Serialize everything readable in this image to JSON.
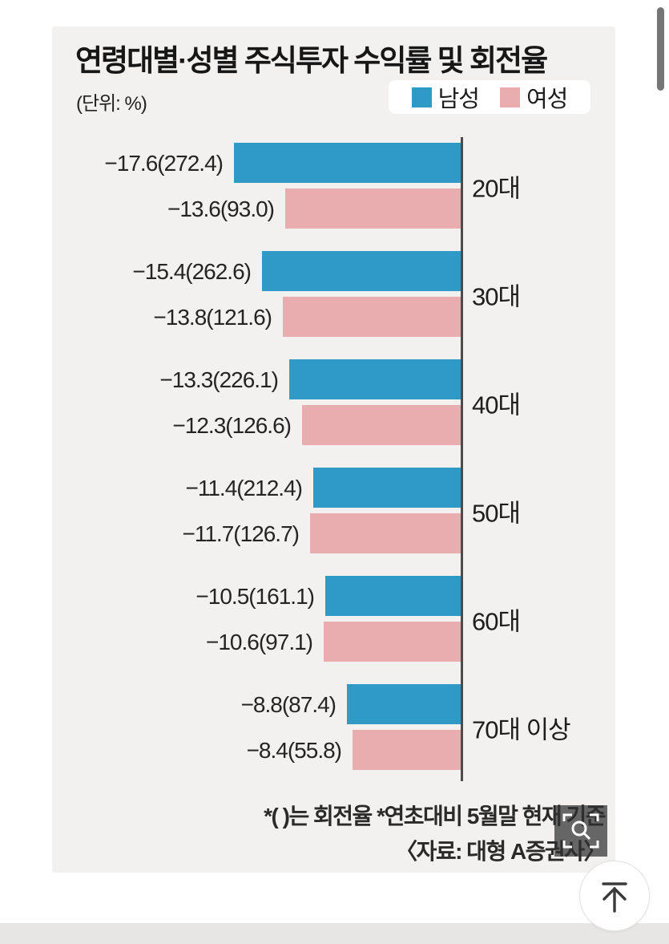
{
  "header": {
    "title": "연령대별·성별 주식투자 수익률 및 회전율",
    "unit_label": "(단위: %)"
  },
  "legend": {
    "items": [
      {
        "label": "남성",
        "color": "#2f9ac6"
      },
      {
        "label": "여성",
        "color": "#eaadaf"
      }
    ]
  },
  "chart_data": {
    "type": "bar",
    "orientation": "horizontal-left",
    "title": "연령대별·성별 주식투자 수익률 및 회전율",
    "unit": "%",
    "value_format": "수익률(회전율)",
    "xlim": [
      -18,
      0
    ],
    "categories": [
      "20대",
      "30대",
      "40대",
      "50대",
      "60대",
      "70대 이상"
    ],
    "series": [
      {
        "name": "남성",
        "color": "#2f9ac6",
        "returns": [
          -17.6,
          -15.4,
          -13.3,
          -11.4,
          -10.5,
          -8.8
        ],
        "turnover": [
          272.4,
          262.6,
          226.1,
          212.4,
          161.1,
          87.4
        ]
      },
      {
        "name": "여성",
        "color": "#eaadaf",
        "returns": [
          -13.6,
          -13.8,
          -12.3,
          -11.7,
          -10.6,
          -8.4
        ],
        "turnover": [
          93.0,
          121.6,
          126.6,
          126.7,
          97.1,
          55.8
        ]
      }
    ],
    "rows": [
      {
        "category": "20대",
        "male": {
          "label": "−17.6(272.4)",
          "value": -17.6,
          "turnover": 272.4
        },
        "female": {
          "label": "−13.6(93.0)",
          "value": -13.6,
          "turnover": 93.0
        }
      },
      {
        "category": "30대",
        "male": {
          "label": "−15.4(262.6)",
          "value": -15.4,
          "turnover": 262.6
        },
        "female": {
          "label": "−13.8(121.6)",
          "value": -13.8,
          "turnover": 121.6
        }
      },
      {
        "category": "40대",
        "male": {
          "label": "−13.3(226.1)",
          "value": -13.3,
          "turnover": 226.1
        },
        "female": {
          "label": "−12.3(126.6)",
          "value": -12.3,
          "turnover": 126.6
        }
      },
      {
        "category": "50대",
        "male": {
          "label": "−11.4(212.4)",
          "value": -11.4,
          "turnover": 212.4
        },
        "female": {
          "label": "−11.7(126.7)",
          "value": -11.7,
          "turnover": 126.7
        }
      },
      {
        "category": "60대",
        "male": {
          "label": "−10.5(161.1)",
          "value": -10.5,
          "turnover": 161.1
        },
        "female": {
          "label": "−10.6(97.1)",
          "value": -10.6,
          "turnover": 97.1
        }
      },
      {
        "category": "70대 이상",
        "male": {
          "label": "−8.8(87.4)",
          "value": -8.8,
          "turnover": 87.4
        },
        "female": {
          "label": "−8.4(55.8)",
          "value": -8.4,
          "turnover": 55.8
        }
      }
    ]
  },
  "footnotes": {
    "note": "*( )는 회전율 *연초대비 5월말 현재 기준",
    "source": "〈자료: 대형 A증권사〉"
  },
  "ui": {
    "zoom_button_icon": "magnifier-icon",
    "scroll_top_icon": "arrow-up-to-top-icon"
  }
}
